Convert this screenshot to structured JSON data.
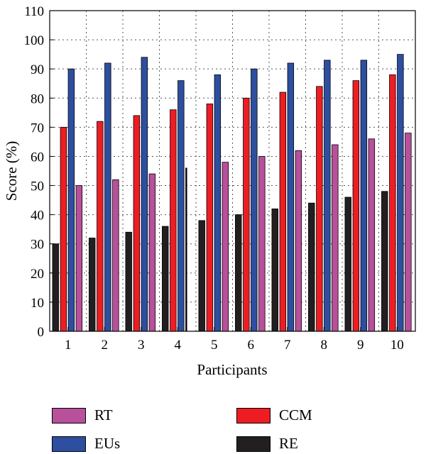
{
  "colors": {
    "RE": "#231f20",
    "RT": "#b8509c",
    "CCM": "#ee1d24",
    "EUs": "#2e4fa0"
  },
  "chart_data": {
    "type": "bar",
    "xlabel": "Participants",
    "ylabel": "Score (%)",
    "ylim": [
      0,
      110
    ],
    "yticks": [
      0,
      10,
      20,
      30,
      40,
      50,
      60,
      70,
      80,
      90,
      100,
      110
    ],
    "categories": [
      "1",
      "2",
      "3",
      "4",
      "5",
      "6",
      "7",
      "8",
      "9",
      "10"
    ],
    "grid": true,
    "legend_position": "bottom",
    "series": [
      {
        "name": "RE",
        "values": [
          30,
          32,
          34,
          36,
          38,
          40,
          42,
          44,
          46,
          48
        ]
      },
      {
        "name": "CCM",
        "values": [
          70,
          72,
          74,
          76,
          78,
          80,
          82,
          84,
          86,
          88
        ]
      },
      {
        "name": "EUs",
        "values": [
          90,
          92,
          94,
          86,
          88,
          90,
          92,
          93,
          93,
          95
        ]
      },
      {
        "name": "RT",
        "values": [
          50,
          52,
          54,
          56,
          58,
          60,
          62,
          64,
          66,
          68
        ]
      }
    ]
  },
  "legend": {
    "items": [
      {
        "label": "RT",
        "color": "#b8509c"
      },
      {
        "label": "CCM",
        "color": "#ee1d24"
      },
      {
        "label": "EUs",
        "color": "#2e4fa0"
      },
      {
        "label": "RE",
        "color": "#231f20"
      }
    ]
  }
}
